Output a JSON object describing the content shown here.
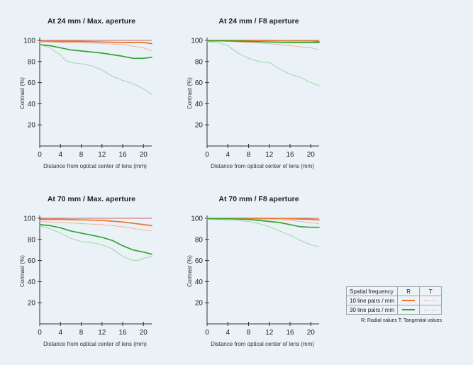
{
  "colors": {
    "r10": "#e8762b",
    "t10": "#f0a57a",
    "r30": "#2fa832",
    "t30": "#86d08a",
    "axis": "#333333",
    "ref": "#c9302c"
  },
  "chart_data": [
    {
      "type": "line",
      "title": "At 24 mm / Max. aperture",
      "xlabel": "Distance from optical center of lens (mm)",
      "ylabel": "Contrast (%)",
      "xlim": [
        0,
        21.6
      ],
      "ylim": [
        0,
        100
      ],
      "xticks": [
        "0",
        "4",
        "8",
        "12",
        "16",
        "20"
      ],
      "yticks": [
        "20",
        "40",
        "60",
        "80",
        "100"
      ],
      "series": [
        {
          "key": "r10",
          "style": "solid",
          "x": [
            0,
            4,
            8,
            12,
            16,
            20,
            21.6
          ],
          "y": [
            99,
            99,
            99,
            98.5,
            98,
            98,
            97
          ]
        },
        {
          "key": "t10",
          "style": "dashed",
          "x": [
            0,
            4,
            8,
            12,
            16,
            20,
            21.6
          ],
          "y": [
            99,
            98,
            98,
            97,
            96,
            93,
            90
          ]
        },
        {
          "key": "r30",
          "style": "solid",
          "x": [
            0,
            2,
            4,
            6,
            8,
            12,
            16,
            18,
            20,
            21.6
          ],
          "y": [
            96,
            95,
            93,
            91,
            90,
            88,
            85,
            83,
            83,
            84
          ]
        },
        {
          "key": "t30",
          "style": "dashed",
          "x": [
            0,
            2,
            4,
            5,
            6,
            8,
            10,
            12,
            14,
            16,
            18,
            20,
            21.6
          ],
          "y": [
            96,
            93,
            86,
            81,
            79,
            78,
            76,
            72,
            66,
            62,
            59,
            54,
            49
          ]
        }
      ]
    },
    {
      "type": "line",
      "title": "At 24 mm / F8 aperture",
      "xlabel": "Distance from optical center of lens (mm)",
      "ylabel": "Contrast (%)",
      "xlim": [
        0,
        21.6
      ],
      "ylim": [
        0,
        100
      ],
      "xticks": [
        "0",
        "4",
        "8",
        "12",
        "16",
        "20"
      ],
      "yticks": [
        "20",
        "40",
        "60",
        "80",
        "100"
      ],
      "series": [
        {
          "key": "r10",
          "style": "solid",
          "x": [
            0,
            4,
            8,
            12,
            16,
            20,
            21.6
          ],
          "y": [
            100,
            100,
            100,
            100,
            99.5,
            99.5,
            99
          ]
        },
        {
          "key": "t10",
          "style": "dashed",
          "x": [
            0,
            4,
            8,
            12,
            16,
            20,
            21.6
          ],
          "y": [
            100,
            99,
            98,
            97,
            95,
            93,
            91
          ]
        },
        {
          "key": "r30",
          "style": "solid",
          "x": [
            0,
            4,
            8,
            12,
            16,
            20,
            21.6
          ],
          "y": [
            99.5,
            99.5,
            99,
            98.5,
            98,
            98,
            98
          ]
        },
        {
          "key": "t30",
          "style": "dashed",
          "x": [
            0,
            2,
            4,
            6,
            8,
            10,
            12,
            14,
            16,
            18,
            20,
            21.6
          ],
          "y": [
            99,
            98,
            95,
            88,
            83,
            80,
            79,
            73,
            68,
            65,
            60,
            57
          ]
        }
      ]
    },
    {
      "type": "line",
      "title": "At 70 mm / Max. aperture",
      "xlabel": "Distance from optical center of lens (mm)",
      "ylabel": "Contrast (%)",
      "xlim": [
        0,
        21.6
      ],
      "ylim": [
        0,
        100
      ],
      "xticks": [
        "0",
        "4",
        "8",
        "12",
        "16",
        "20"
      ],
      "yticks": [
        "20",
        "40",
        "60",
        "80",
        "100"
      ],
      "series": [
        {
          "key": "r10",
          "style": "solid",
          "x": [
            0,
            4,
            8,
            12,
            16,
            20,
            21.6
          ],
          "y": [
            99,
            99,
            98.5,
            98,
            96.5,
            94,
            93
          ]
        },
        {
          "key": "t10",
          "style": "dashed",
          "x": [
            0,
            4,
            8,
            12,
            16,
            20,
            21.6
          ],
          "y": [
            97,
            96,
            95,
            94,
            92,
            89,
            88
          ]
        },
        {
          "key": "r30",
          "style": "solid",
          "x": [
            0,
            2,
            4,
            6,
            8,
            10,
            12,
            14,
            16,
            18,
            20,
            21.6
          ],
          "y": [
            94,
            93,
            91,
            88,
            86,
            84,
            82,
            79,
            74,
            70,
            68,
            66
          ]
        },
        {
          "key": "t30",
          "style": "dashed",
          "x": [
            0,
            2,
            4,
            6,
            8,
            10,
            12,
            14,
            16,
            18,
            19,
            20,
            21.6
          ],
          "y": [
            93,
            90,
            86,
            81,
            78,
            77,
            75,
            71,
            64,
            60,
            60,
            62,
            64
          ]
        }
      ]
    },
    {
      "type": "line",
      "title": "At 70 mm / F8 aperture",
      "xlabel": "Distance from optical center of lens (mm)",
      "ylabel": "Contrast (%)",
      "xlim": [
        0,
        21.6
      ],
      "ylim": [
        0,
        100
      ],
      "xticks": [
        "0",
        "4",
        "8",
        "12",
        "16",
        "20"
      ],
      "yticks": [
        "20",
        "40",
        "60",
        "80",
        "100"
      ],
      "series": [
        {
          "key": "r10",
          "style": "solid",
          "x": [
            0,
            4,
            8,
            12,
            16,
            20,
            21.6
          ],
          "y": [
            100,
            100,
            100,
            100,
            99.5,
            99,
            98.5
          ]
        },
        {
          "key": "t10",
          "style": "dashed",
          "x": [
            0,
            4,
            8,
            12,
            16,
            20,
            21.6
          ],
          "y": [
            100,
            100,
            99,
            99,
            98,
            96,
            95
          ]
        },
        {
          "key": "r30",
          "style": "solid",
          "x": [
            0,
            4,
            8,
            10,
            12,
            14,
            16,
            18,
            20,
            21.6
          ],
          "y": [
            99.5,
            99.5,
            99,
            98,
            97,
            96,
            94,
            92,
            91.5,
            91.5
          ]
        },
        {
          "key": "t30",
          "style": "dashed",
          "x": [
            0,
            4,
            8,
            10,
            12,
            14,
            16,
            18,
            20,
            21.6
          ],
          "y": [
            99,
            98.5,
            97,
            95,
            92,
            88,
            84,
            79,
            75,
            73
          ]
        }
      ]
    }
  ],
  "legend": {
    "header": "Spatial frequency",
    "col_r": "R",
    "col_t": "T",
    "row1": "10 line pairs / mm",
    "row2": "30 line pairs / mm",
    "note": "R: Radial values  T: Tangential values"
  }
}
